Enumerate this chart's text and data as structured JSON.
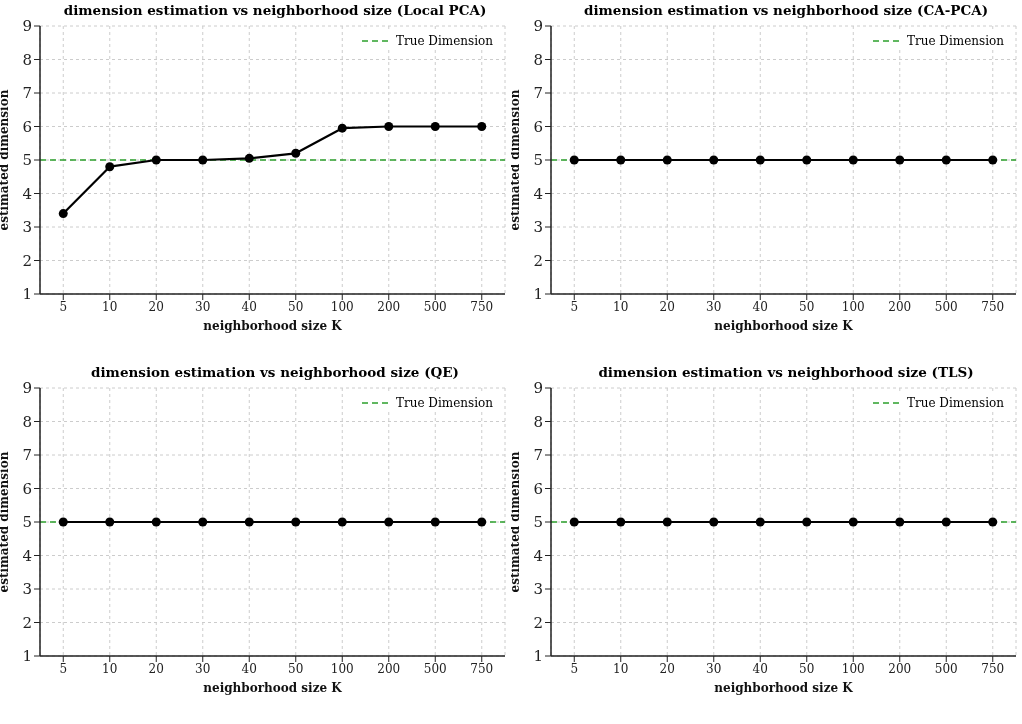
{
  "chart_data": [
    {
      "type": "line",
      "title": "dimension estimation vs neighborhood size (Local PCA)",
      "xlabel": "neighborhood size K",
      "ylabel": "estimated dimension",
      "categories": [
        "5",
        "10",
        "20",
        "30",
        "40",
        "50",
        "100",
        "200",
        "500",
        "750"
      ],
      "series": [
        {
          "color": "#000000",
          "values": [
            3.4,
            4.8,
            5.0,
            5.0,
            5.05,
            5.2,
            5.95,
            6.0,
            6.0,
            6.0
          ]
        }
      ],
      "ylim": [
        1,
        9
      ],
      "yticks": [
        1,
        2,
        3,
        4,
        5,
        6,
        7,
        8,
        9
      ],
      "grid": true,
      "marker": "circle",
      "line_style": "solid",
      "legend": "top right",
      "ref_lines": [
        {
          "axis": "y",
          "value": 5,
          "label": "True Dimension",
          "color": "#2ca02c",
          "line_style": "dashed"
        }
      ]
    },
    {
      "type": "line",
      "title": "dimension estimation vs neighborhood size (CA-PCA)",
      "xlabel": "neighborhood size K",
      "ylabel": "estimated dimension",
      "categories": [
        "5",
        "10",
        "20",
        "30",
        "40",
        "50",
        "100",
        "200",
        "500",
        "750"
      ],
      "series": [
        {
          "color": "#000000",
          "values": [
            5,
            5,
            5,
            5,
            5,
            5,
            5,
            5,
            5,
            5
          ]
        }
      ],
      "ylim": [
        1,
        9
      ],
      "yticks": [
        1,
        2,
        3,
        4,
        5,
        6,
        7,
        8,
        9
      ],
      "grid": true,
      "marker": "circle",
      "line_style": "solid",
      "legend": "top right",
      "ref_lines": [
        {
          "axis": "y",
          "value": 5,
          "label": "True Dimension",
          "color": "#2ca02c",
          "line_style": "dashed"
        }
      ]
    },
    {
      "type": "line",
      "title": "dimension estimation vs neighborhood size (QE)",
      "xlabel": "neighborhood size K",
      "ylabel": "estimated dimension",
      "categories": [
        "5",
        "10",
        "20",
        "30",
        "40",
        "50",
        "100",
        "200",
        "500",
        "750"
      ],
      "series": [
        {
          "color": "#000000",
          "values": [
            5,
            5,
            5,
            5,
            5,
            5,
            5,
            5,
            5,
            5
          ]
        }
      ],
      "ylim": [
        1,
        9
      ],
      "yticks": [
        1,
        2,
        3,
        4,
        5,
        6,
        7,
        8,
        9
      ],
      "grid": true,
      "marker": "circle",
      "line_style": "solid",
      "legend": "top right",
      "ref_lines": [
        {
          "axis": "y",
          "value": 5,
          "label": "True Dimension",
          "color": "#2ca02c",
          "line_style": "dashed"
        }
      ]
    },
    {
      "type": "line",
      "title": "dimension estimation vs neighborhood size (TLS)",
      "xlabel": "neighborhood size K",
      "ylabel": "estimated dimension",
      "categories": [
        "5",
        "10",
        "20",
        "30",
        "40",
        "50",
        "100",
        "200",
        "500",
        "750"
      ],
      "series": [
        {
          "color": "#000000",
          "values": [
            5,
            5,
            5,
            5,
            5,
            5,
            5,
            5,
            5,
            5
          ]
        }
      ],
      "ylim": [
        1,
        9
      ],
      "yticks": [
        1,
        2,
        3,
        4,
        5,
        6,
        7,
        8,
        9
      ],
      "grid": true,
      "marker": "circle",
      "line_style": "solid",
      "legend": "top right",
      "ref_lines": [
        {
          "axis": "y",
          "value": 5,
          "label": "True Dimension",
          "color": "#2ca02c",
          "line_style": "dashed"
        }
      ]
    }
  ]
}
